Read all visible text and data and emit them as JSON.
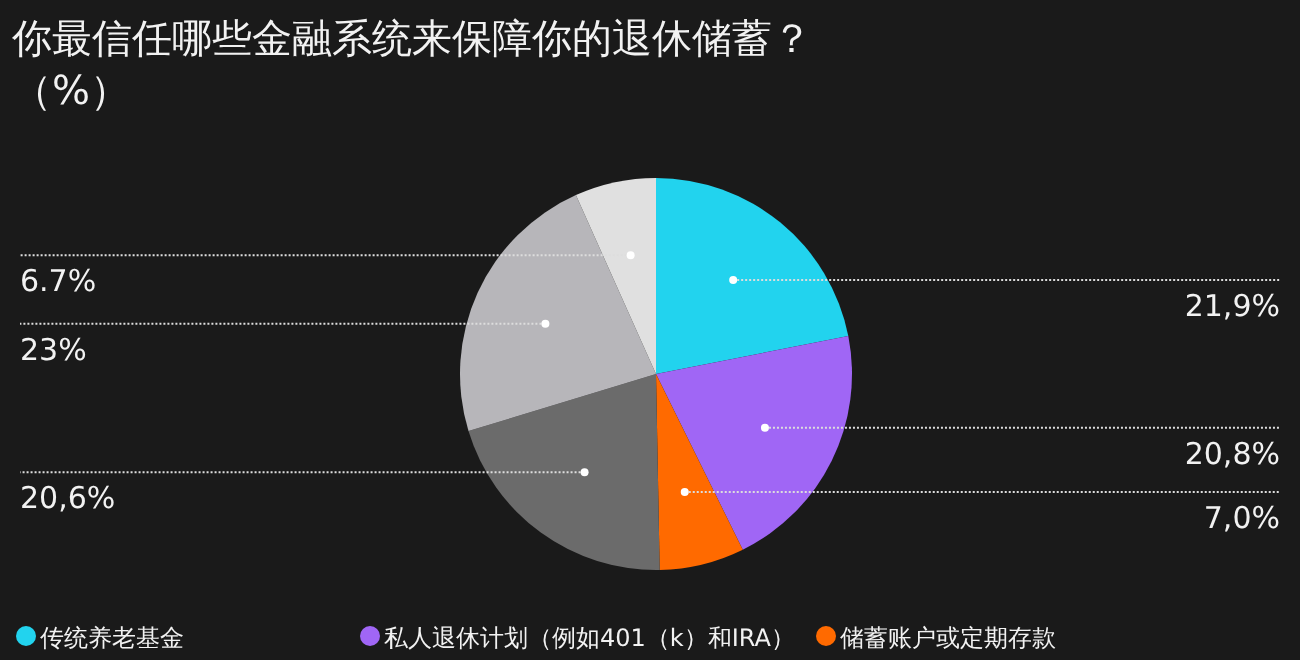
{
  "chart_data": {
    "type": "pie",
    "title": "你最信任哪些金融系统来保障你的退休储蓄？（%）",
    "categories": [
      "传统养老基金",
      "私人退休计划（例如401（k）和IRA）",
      "储蓄账户或定期存款",
      null,
      null,
      null
    ],
    "values": [
      21.9,
      20.8,
      7.0,
      20.6,
      23,
      6.7
    ],
    "value_labels": [
      "21,9%",
      "20,8%",
      "7,0%",
      "20,6%",
      "23%",
      "6.7%"
    ],
    "colors": [
      "#22d3ee",
      "#a066f5",
      "#ff6a00",
      "#6b6b6b",
      "#b7b6ba",
      "#e0e0e0"
    ],
    "legend": "bottom"
  }
}
